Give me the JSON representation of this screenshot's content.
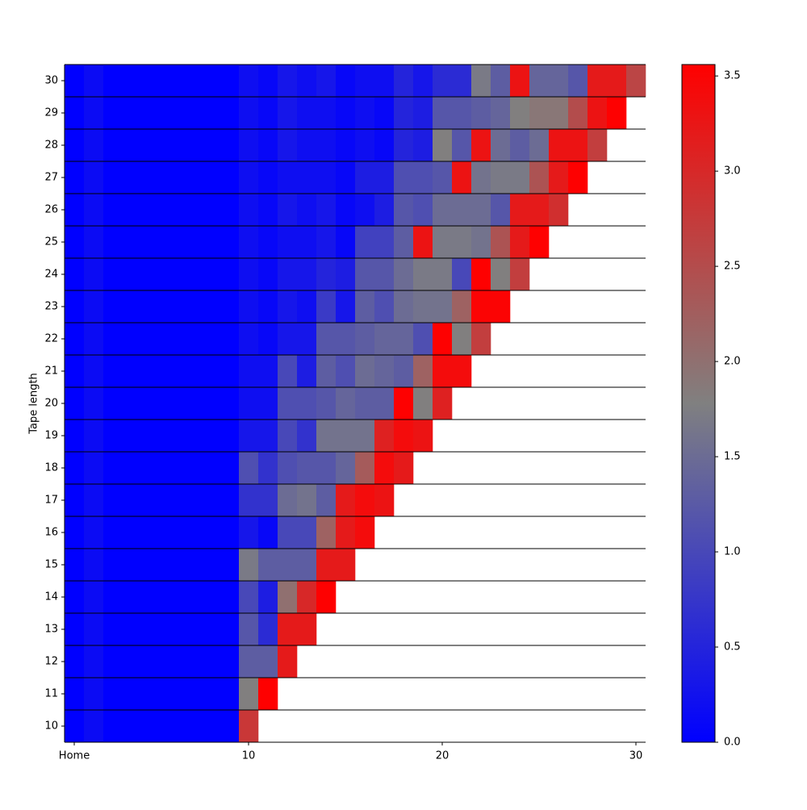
{
  "chart_data": {
    "type": "heatmap",
    "y_label": "Tape length",
    "xlim": [
      0.5,
      30.5
    ],
    "xticks": [
      {
        "value": 1,
        "label": "Home"
      },
      10,
      20,
      30
    ],
    "ylim": [
      9.5,
      30.5
    ],
    "yticks": [
      10,
      11,
      12,
      13,
      14,
      15,
      16,
      17,
      18,
      19,
      20,
      21,
      22,
      23,
      24,
      25,
      26,
      27,
      28,
      29,
      30
    ],
    "z": [
      [
        0,
        0.15,
        0,
        0,
        0,
        0,
        0,
        0,
        0,
        2.8
      ],
      [
        0,
        0.15,
        0,
        0,
        0,
        0,
        0,
        0,
        0,
        1.8,
        3.55
      ],
      [
        0,
        0.15,
        0,
        0,
        0,
        0,
        0,
        0,
        0,
        1.3,
        1.3,
        3.2
      ],
      [
        0,
        0.15,
        0,
        0,
        0,
        0,
        0,
        0,
        0,
        1.2,
        0.6,
        3.2,
        3.2
      ],
      [
        0,
        0.15,
        0,
        0,
        0,
        0,
        0,
        0,
        0,
        1.0,
        0.4,
        2.0,
        3.0,
        3.55
      ],
      [
        0,
        0.15,
        0,
        0,
        0,
        0,
        0,
        0,
        0,
        1.7,
        1.3,
        1.3,
        1.3,
        3.2,
        3.2
      ],
      [
        0,
        0.15,
        0,
        0,
        0,
        0,
        0,
        0,
        0,
        0.3,
        0.1,
        1.0,
        1.0,
        2.2,
        3.2,
        3.4
      ],
      [
        0,
        0.15,
        0,
        0,
        0,
        0,
        0,
        0,
        0,
        0.7,
        0.7,
        1.5,
        1.6,
        1.3,
        3.2,
        3.4,
        3.3
      ],
      [
        0,
        0.15,
        0,
        0,
        0,
        0,
        0,
        0,
        0,
        1.1,
        0.7,
        1.1,
        1.2,
        1.2,
        1.4,
        2.3,
        3.4,
        3.2
      ],
      [
        0,
        0.15,
        0,
        0,
        0,
        0,
        0,
        0,
        0,
        0.3,
        0.3,
        1.0,
        0.7,
        1.6,
        1.6,
        1.6,
        3.1,
        3.4,
        3.3
      ],
      [
        0,
        0.15,
        0,
        0,
        0,
        0,
        0,
        0,
        0,
        0.2,
        0.2,
        1.1,
        1.1,
        1.2,
        1.4,
        1.3,
        1.3,
        3.55,
        1.8,
        3.1
      ],
      [
        0,
        0.15,
        0,
        0,
        0,
        0,
        0,
        0,
        0,
        0.2,
        0.2,
        1.0,
        0.4,
        1.3,
        1.1,
        1.5,
        1.4,
        1.3,
        2.2,
        3.4,
        3.4
      ],
      [
        0,
        0.15,
        0,
        0,
        0,
        0,
        0,
        0,
        0,
        0.2,
        0.1,
        0.3,
        0.3,
        1.2,
        1.2,
        1.3,
        1.4,
        1.4,
        1.1,
        3.55,
        1.8,
        2.7
      ],
      [
        0,
        0.15,
        0,
        0,
        0,
        0,
        0,
        0,
        0,
        0.2,
        0.1,
        0.3,
        0.2,
        0.8,
        0.3,
        1.3,
        1.1,
        1.5,
        1.6,
        1.6,
        2.2,
        3.5,
        3.5
      ],
      [
        0,
        0.15,
        0,
        0,
        0,
        0,
        0,
        0,
        0,
        0.2,
        0.1,
        0.3,
        0.3,
        0.5,
        0.4,
        1.2,
        1.2,
        1.5,
        1.7,
        1.7,
        1.0,
        3.55,
        1.8,
        2.7
      ],
      [
        0,
        0.15,
        0,
        0,
        0,
        0,
        0,
        0,
        0,
        0.2,
        0.1,
        0.2,
        0.2,
        0.3,
        0.1,
        0.9,
        0.9,
        1.3,
        3.3,
        1.7,
        1.7,
        1.6,
        2.4,
        3.2,
        3.55
      ],
      [
        0,
        0.15,
        0,
        0,
        0,
        0,
        0,
        0,
        0,
        0.2,
        0.1,
        0.3,
        0.2,
        0.3,
        0.1,
        0.2,
        0.4,
        1.2,
        1.1,
        1.5,
        1.5,
        1.5,
        1.2,
        3.2,
        3.2,
        2.9
      ],
      [
        0,
        0.15,
        0,
        0,
        0,
        0,
        0,
        0,
        0,
        0.2,
        0.1,
        0.2,
        0.2,
        0.2,
        0.1,
        0.4,
        0.4,
        1.1,
        1.1,
        1.2,
        3.3,
        1.6,
        1.7,
        1.7,
        2.4,
        3.2,
        3.55
      ],
      [
        0,
        0.15,
        0,
        0,
        0,
        0,
        0,
        0,
        0,
        0.2,
        0.1,
        0.3,
        0.2,
        0.2,
        0.1,
        0.2,
        0.1,
        0.5,
        0.4,
        1.8,
        1.2,
        3.3,
        1.5,
        1.3,
        1.5,
        3.3,
        3.3,
        2.7
      ],
      [
        0,
        0.15,
        0,
        0,
        0,
        0,
        0,
        0,
        0,
        0.2,
        0.1,
        0.3,
        0.2,
        0.2,
        0.1,
        0.2,
        0.1,
        0.5,
        0.4,
        1.2,
        1.2,
        1.3,
        1.4,
        1.8,
        1.9,
        1.9,
        2.5,
        3.3,
        3.55
      ],
      [
        0,
        0.15,
        0,
        0,
        0,
        0,
        0,
        0,
        0,
        0.2,
        0.1,
        0.3,
        0.2,
        0.3,
        0.1,
        0.2,
        0.2,
        0.5,
        0.3,
        0.6,
        0.6,
        1.7,
        1.3,
        3.3,
        1.4,
        1.4,
        1.2,
        3.2,
        3.2,
        2.6
      ]
    ],
    "colormap": [
      "#0000ff",
      "#808080",
      "#ff0000"
    ],
    "colorbar": {
      "lim": [
        0,
        3.56
      ],
      "ticks": [
        {
          "value": 0,
          "label": "0.0"
        },
        0.5,
        {
          "value": 1,
          "label": "1.0"
        },
        1.5,
        {
          "value": 2,
          "label": "2.0"
        },
        2.5,
        {
          "value": 3,
          "label": "3.0"
        },
        3.5
      ]
    }
  }
}
